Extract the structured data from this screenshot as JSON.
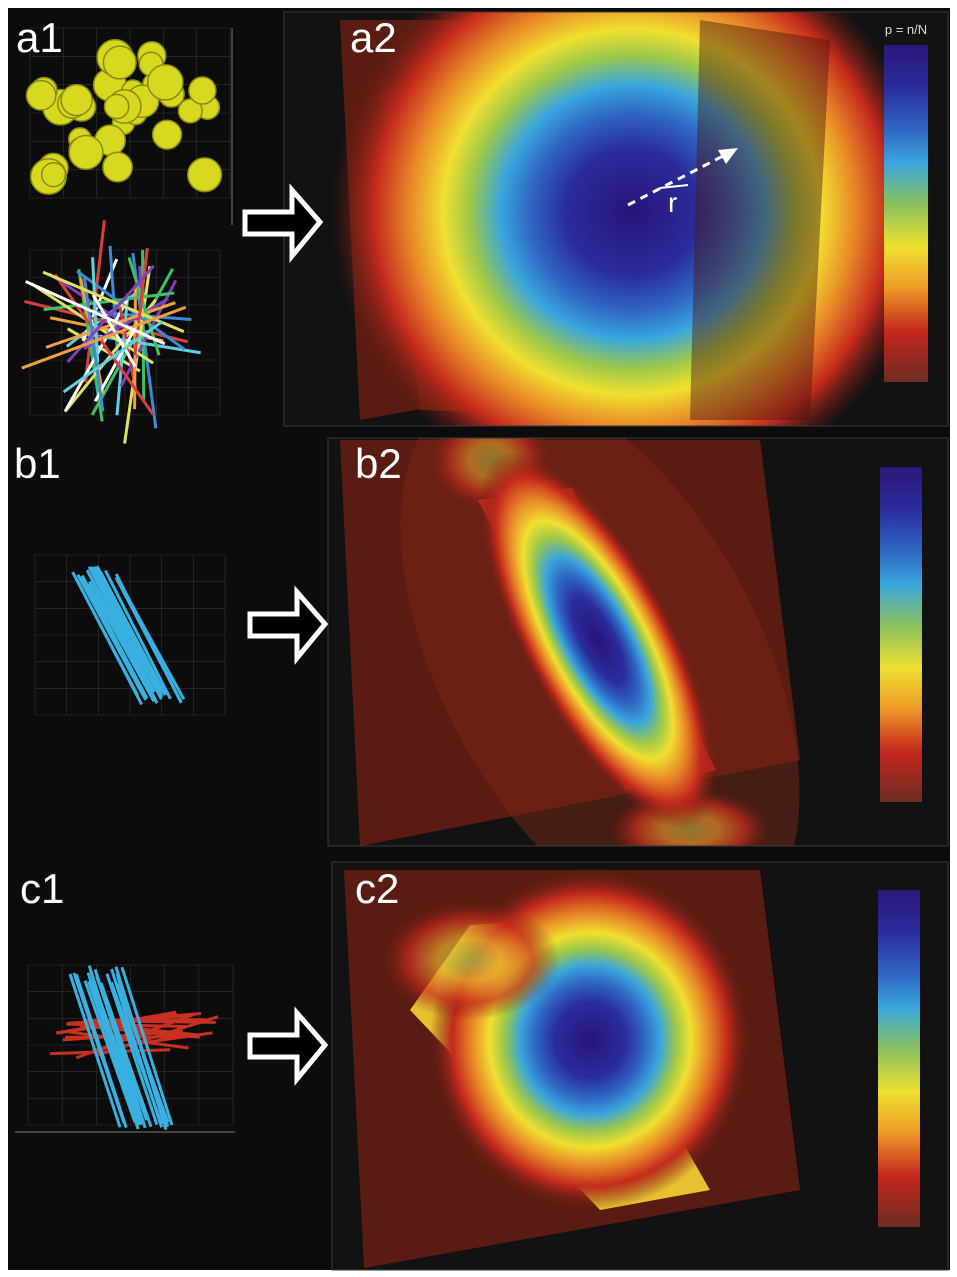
{
  "panels": [
    {
      "label": "a1"
    },
    {
      "label": "a2",
      "colorbar_label": "p = n/N",
      "vector_label": "r"
    },
    {
      "label": "b1"
    },
    {
      "label": "b2"
    },
    {
      "label": "c1"
    },
    {
      "label": "c2"
    }
  ]
}
